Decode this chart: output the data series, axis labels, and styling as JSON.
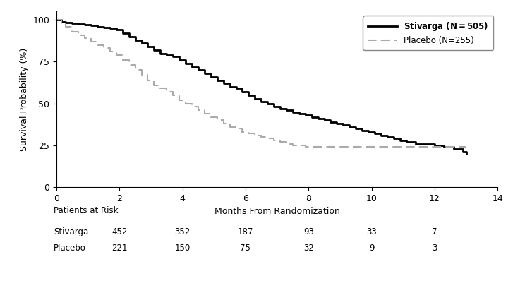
{
  "xlabel": "Months From Randomization",
  "ylabel": "Survival Probability (%)",
  "xlim": [
    0,
    14
  ],
  "ylim": [
    0,
    105
  ],
  "xticks": [
    0,
    2,
    4,
    6,
    8,
    10,
    12,
    14
  ],
  "yticks": [
    0,
    25,
    50,
    75,
    100
  ],
  "stivarga_label_bold": "Stivarga (N=505)",
  "placebo_label": "Placebo (N=255)",
  "stivarga_color": "#000000",
  "placebo_color": "#aaaaaa",
  "stivarga_lw": 2.0,
  "placebo_lw": 1.5,
  "risk_header": "Patients at Risk",
  "risk_times": [
    2,
    4,
    6,
    8,
    10,
    12
  ],
  "risk_stivarga": [
    452,
    352,
    187,
    93,
    33,
    7
  ],
  "risk_placebo": [
    221,
    150,
    75,
    32,
    9,
    3
  ],
  "stivarga_x": [
    0,
    0.15,
    0.3,
    0.5,
    0.7,
    0.9,
    1.1,
    1.3,
    1.5,
    1.7,
    1.9,
    2.1,
    2.3,
    2.5,
    2.7,
    2.9,
    3.1,
    3.3,
    3.5,
    3.7,
    3.9,
    4.1,
    4.3,
    4.5,
    4.7,
    4.9,
    5.1,
    5.3,
    5.5,
    5.7,
    5.9,
    6.1,
    6.3,
    6.5,
    6.7,
    6.9,
    7.1,
    7.3,
    7.5,
    7.7,
    7.9,
    8.1,
    8.3,
    8.5,
    8.7,
    8.9,
    9.1,
    9.3,
    9.5,
    9.7,
    9.9,
    10.1,
    10.3,
    10.5,
    10.7,
    10.9,
    11.1,
    11.4,
    11.7,
    12.0,
    12.3,
    12.6,
    12.9,
    13.0
  ],
  "stivarga_y": [
    100,
    99,
    98.5,
    98,
    97.5,
    97,
    96.5,
    96,
    95.5,
    95,
    94,
    92,
    90,
    88,
    86,
    84,
    82,
    80,
    79,
    78,
    76,
    74,
    72,
    70,
    68,
    66,
    64,
    62,
    60,
    59,
    57,
    55,
    53,
    51,
    50,
    48,
    47,
    46,
    45,
    44,
    43,
    42,
    41,
    40,
    39,
    38,
    37,
    36,
    35,
    34,
    33,
    32,
    31,
    30,
    29,
    28,
    27,
    26,
    26,
    25,
    24,
    23,
    21,
    20
  ],
  "placebo_x": [
    0,
    0.15,
    0.3,
    0.5,
    0.7,
    0.9,
    1.1,
    1.3,
    1.5,
    1.7,
    1.9,
    2.1,
    2.3,
    2.5,
    2.7,
    2.9,
    3.1,
    3.3,
    3.5,
    3.7,
    3.9,
    4.1,
    4.3,
    4.5,
    4.7,
    4.9,
    5.1,
    5.3,
    5.5,
    5.7,
    5.9,
    6.1,
    6.3,
    6.5,
    6.7,
    6.9,
    7.1,
    7.3,
    7.5,
    7.7,
    7.9,
    8.1,
    8.5,
    9.0,
    9.5,
    10.0,
    10.5,
    11.0,
    11.5,
    12.0,
    12.5,
    13.0
  ],
  "placebo_y": [
    100,
    98,
    96,
    93,
    91,
    89,
    87,
    85,
    83,
    81,
    79,
    76,
    73,
    70,
    67,
    64,
    61,
    59,
    57,
    55,
    52,
    50,
    48,
    46,
    44,
    42,
    40,
    38,
    36,
    35,
    33,
    32,
    31,
    30,
    29,
    28,
    27,
    26,
    25,
    25,
    24,
    24,
    24,
    24,
    24,
    24,
    24,
    24,
    24,
    24,
    24,
    24
  ]
}
